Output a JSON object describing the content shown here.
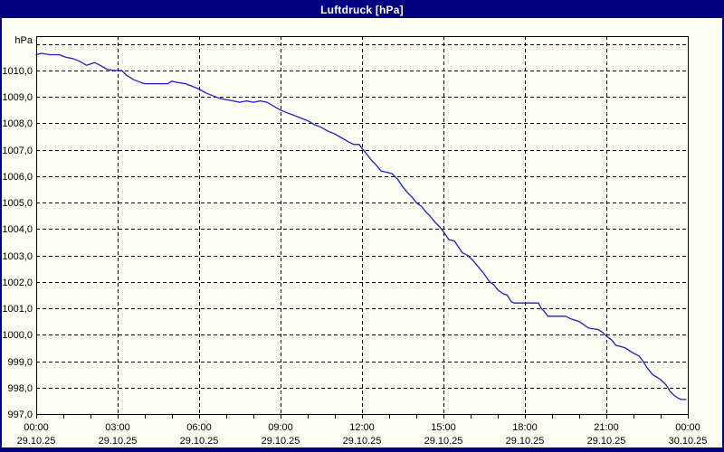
{
  "window": {
    "title": "Luftdruck [hPa]"
  },
  "colors": {
    "titlebar_bg": "#000080",
    "window_border": "#000080",
    "chart_bg": "#FCFDF3",
    "grid": "#000000",
    "line": "#1E1EC8",
    "title_text": "#FFFFFF",
    "label_text": "#000000"
  },
  "chart_data": {
    "type": "line",
    "title": "Luftdruck [hPa]",
    "unit_label": "hPa",
    "grid": "dashed",
    "legend": "none",
    "x_axis": {
      "hours_range": [
        0,
        24
      ],
      "gridline_every_hours": 3,
      "tick_every_hours": 1,
      "ticks": [
        {
          "time": "00:00",
          "date": "29.10.25"
        },
        {
          "time": "03:00",
          "date": "29.10.25"
        },
        {
          "time": "06:00",
          "date": "29.10.25"
        },
        {
          "time": "09:00",
          "date": "29.10.25"
        },
        {
          "time": "12:00",
          "date": "29.10.25"
        },
        {
          "time": "15:00",
          "date": "29.10.25"
        },
        {
          "time": "18:00",
          "date": "29.10.25"
        },
        {
          "time": "21:00",
          "date": "29.10.25"
        },
        {
          "time": "00:00",
          "date": "30.10.25"
        }
      ]
    },
    "y_axis": {
      "min": 997.0,
      "top": 1011.3,
      "step": 1.0,
      "top_gridline": 1011.0,
      "labels": [
        {
          "value": 997.0,
          "label": "997,0"
        },
        {
          "value": 998.0,
          "label": "998,0"
        },
        {
          "value": 999.0,
          "label": "999,0"
        },
        {
          "value": 1000.0,
          "label": "1000,0"
        },
        {
          "value": 1001.0,
          "label": "1001,0"
        },
        {
          "value": 1002.0,
          "label": "1002,0"
        },
        {
          "value": 1003.0,
          "label": "1003,0"
        },
        {
          "value": 1004.0,
          "label": "1004,0"
        },
        {
          "value": 1005.0,
          "label": "1005,0"
        },
        {
          "value": 1006.0,
          "label": "1006,0"
        },
        {
          "value": 1007.0,
          "label": "1007,0"
        },
        {
          "value": 1008.0,
          "label": "1008,0"
        },
        {
          "value": 1009.0,
          "label": "1009,0"
        },
        {
          "value": 1010.0,
          "label": "1010,0"
        }
      ]
    },
    "series": [
      {
        "name": "Luftdruck",
        "color": "#1E1EC8",
        "points": [
          [
            0.0,
            1010.6
          ],
          [
            0.2,
            1010.65
          ],
          [
            0.5,
            1010.6
          ],
          [
            0.85,
            1010.6
          ],
          [
            1.1,
            1010.5
          ],
          [
            1.35,
            1010.45
          ],
          [
            1.6,
            1010.35
          ],
          [
            1.85,
            1010.2
          ],
          [
            2.0,
            1010.25
          ],
          [
            2.15,
            1010.3
          ],
          [
            2.35,
            1010.2
          ],
          [
            2.6,
            1010.05
          ],
          [
            2.85,
            1010.0
          ],
          [
            3.15,
            1010.0
          ],
          [
            3.35,
            1009.8
          ],
          [
            3.6,
            1009.65
          ],
          [
            3.85,
            1009.55
          ],
          [
            4.0,
            1009.5
          ],
          [
            4.5,
            1009.5
          ],
          [
            4.85,
            1009.5
          ],
          [
            5.0,
            1009.6
          ],
          [
            5.2,
            1009.55
          ],
          [
            5.5,
            1009.5
          ],
          [
            5.75,
            1009.4
          ],
          [
            6.0,
            1009.3
          ],
          [
            6.25,
            1009.15
          ],
          [
            6.5,
            1009.05
          ],
          [
            6.75,
            1008.95
          ],
          [
            7.0,
            1008.9
          ],
          [
            7.25,
            1008.85
          ],
          [
            7.5,
            1008.8
          ],
          [
            7.75,
            1008.85
          ],
          [
            8.0,
            1008.8
          ],
          [
            8.25,
            1008.85
          ],
          [
            8.5,
            1008.8
          ],
          [
            8.75,
            1008.65
          ],
          [
            9.0,
            1008.5
          ],
          [
            9.25,
            1008.4
          ],
          [
            9.5,
            1008.3
          ],
          [
            9.75,
            1008.2
          ],
          [
            10.0,
            1008.1
          ],
          [
            10.25,
            1007.95
          ],
          [
            10.5,
            1007.85
          ],
          [
            10.75,
            1007.7
          ],
          [
            11.0,
            1007.6
          ],
          [
            11.25,
            1007.45
          ],
          [
            11.5,
            1007.3
          ],
          [
            11.7,
            1007.2
          ],
          [
            11.9,
            1007.2
          ],
          [
            12.0,
            1007.05
          ],
          [
            12.2,
            1006.8
          ],
          [
            12.35,
            1006.6
          ],
          [
            12.5,
            1006.45
          ],
          [
            12.7,
            1006.2
          ],
          [
            12.9,
            1006.15
          ],
          [
            13.1,
            1006.1
          ],
          [
            13.3,
            1005.9
          ],
          [
            13.5,
            1005.6
          ],
          [
            13.7,
            1005.35
          ],
          [
            13.85,
            1005.2
          ],
          [
            14.0,
            1005.0
          ],
          [
            14.2,
            1004.85
          ],
          [
            14.35,
            1004.65
          ],
          [
            14.5,
            1004.5
          ],
          [
            14.7,
            1004.25
          ],
          [
            14.85,
            1004.1
          ],
          [
            15.0,
            1003.9
          ],
          [
            15.2,
            1003.6
          ],
          [
            15.4,
            1003.55
          ],
          [
            15.7,
            1003.1
          ],
          [
            15.9,
            1003.0
          ],
          [
            16.1,
            1002.8
          ],
          [
            16.3,
            1002.55
          ],
          [
            16.5,
            1002.3
          ],
          [
            16.7,
            1002.0
          ],
          [
            16.85,
            1001.9
          ],
          [
            17.0,
            1001.7
          ],
          [
            17.2,
            1001.55
          ],
          [
            17.35,
            1001.5
          ],
          [
            17.5,
            1001.25
          ],
          [
            17.6,
            1001.2
          ],
          [
            18.5,
            1001.2
          ],
          [
            18.6,
            1001.0
          ],
          [
            18.7,
            1000.9
          ],
          [
            18.85,
            1000.7
          ],
          [
            19.5,
            1000.7
          ],
          [
            19.7,
            1000.6
          ],
          [
            20.0,
            1000.5
          ],
          [
            20.35,
            1000.25
          ],
          [
            20.7,
            1000.2
          ],
          [
            20.85,
            1000.1
          ],
          [
            21.0,
            999.95
          ],
          [
            21.2,
            999.8
          ],
          [
            21.35,
            999.6
          ],
          [
            21.55,
            999.55
          ],
          [
            21.7,
            999.5
          ],
          [
            22.0,
            999.3
          ],
          [
            22.2,
            999.2
          ],
          [
            22.35,
            999.0
          ],
          [
            22.5,
            998.75
          ],
          [
            22.7,
            998.5
          ],
          [
            22.85,
            998.4
          ],
          [
            23.0,
            998.3
          ],
          [
            23.2,
            998.1
          ],
          [
            23.35,
            997.85
          ],
          [
            23.5,
            997.7
          ],
          [
            23.65,
            997.6
          ],
          [
            23.77,
            997.55
          ],
          [
            23.92,
            997.55
          ]
        ]
      }
    ]
  }
}
